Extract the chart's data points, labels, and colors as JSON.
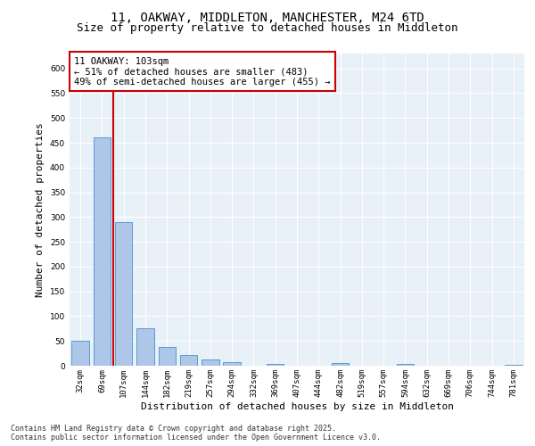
{
  "title1": "11, OAKWAY, MIDDLETON, MANCHESTER, M24 6TD",
  "title2": "Size of property relative to detached houses in Middleton",
  "xlabel": "Distribution of detached houses by size in Middleton",
  "ylabel": "Number of detached properties",
  "categories": [
    "32sqm",
    "69sqm",
    "107sqm",
    "144sqm",
    "182sqm",
    "219sqm",
    "257sqm",
    "294sqm",
    "332sqm",
    "369sqm",
    "407sqm",
    "444sqm",
    "482sqm",
    "519sqm",
    "557sqm",
    "594sqm",
    "632sqm",
    "669sqm",
    "706sqm",
    "744sqm",
    "781sqm"
  ],
  "values": [
    50,
    460,
    290,
    75,
    38,
    22,
    12,
    8,
    0,
    4,
    0,
    0,
    5,
    0,
    0,
    4,
    0,
    0,
    0,
    0,
    2
  ],
  "bar_color": "#aec6e8",
  "bar_edge_color": "#5b9bd5",
  "vline_color": "#cc0000",
  "annotation_text": "11 OAKWAY: 103sqm\n← 51% of detached houses are smaller (483)\n49% of semi-detached houses are larger (455) →",
  "annotation_box_color": "#ffffff",
  "annotation_box_edge": "#cc0000",
  "ylim": [
    0,
    630
  ],
  "yticks": [
    0,
    50,
    100,
    150,
    200,
    250,
    300,
    350,
    400,
    450,
    500,
    550,
    600
  ],
  "background_color": "#e8f0f8",
  "footnote": "Contains HM Land Registry data © Crown copyright and database right 2025.\nContains public sector information licensed under the Open Government Licence v3.0.",
  "title_fontsize": 10,
  "subtitle_fontsize": 9,
  "annotation_fontsize": 7.5,
  "tick_fontsize": 6.5,
  "label_fontsize": 8,
  "footnote_fontsize": 6
}
